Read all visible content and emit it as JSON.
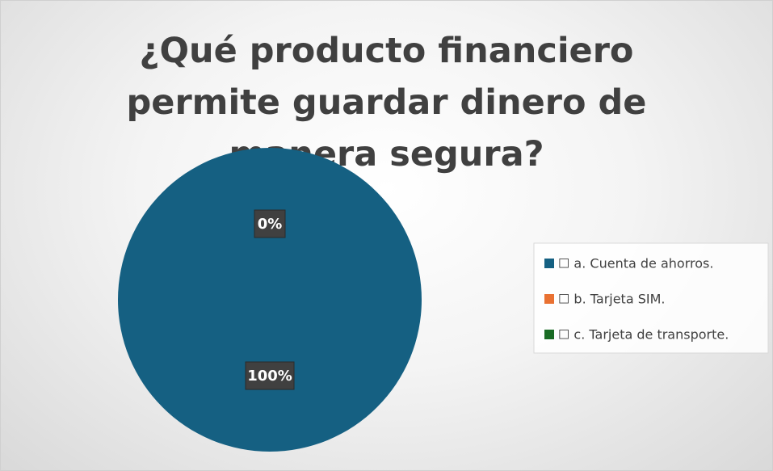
{
  "chart_data": {
    "type": "pie",
    "title": "¿Qué producto financiero permite guardar dinero de manera segura?",
    "categories": [
      "☐ a. Cuenta de ahorros.",
      "☐ b. Tarjeta SIM.",
      "☐ c. Tarjeta de transporte."
    ],
    "values": [
      100,
      0,
      0
    ],
    "value_labels": [
      "100%",
      "0%",
      "0%"
    ],
    "colors": [
      "#156082",
      "#e97132",
      "#196b24"
    ],
    "legend": "right"
  }
}
